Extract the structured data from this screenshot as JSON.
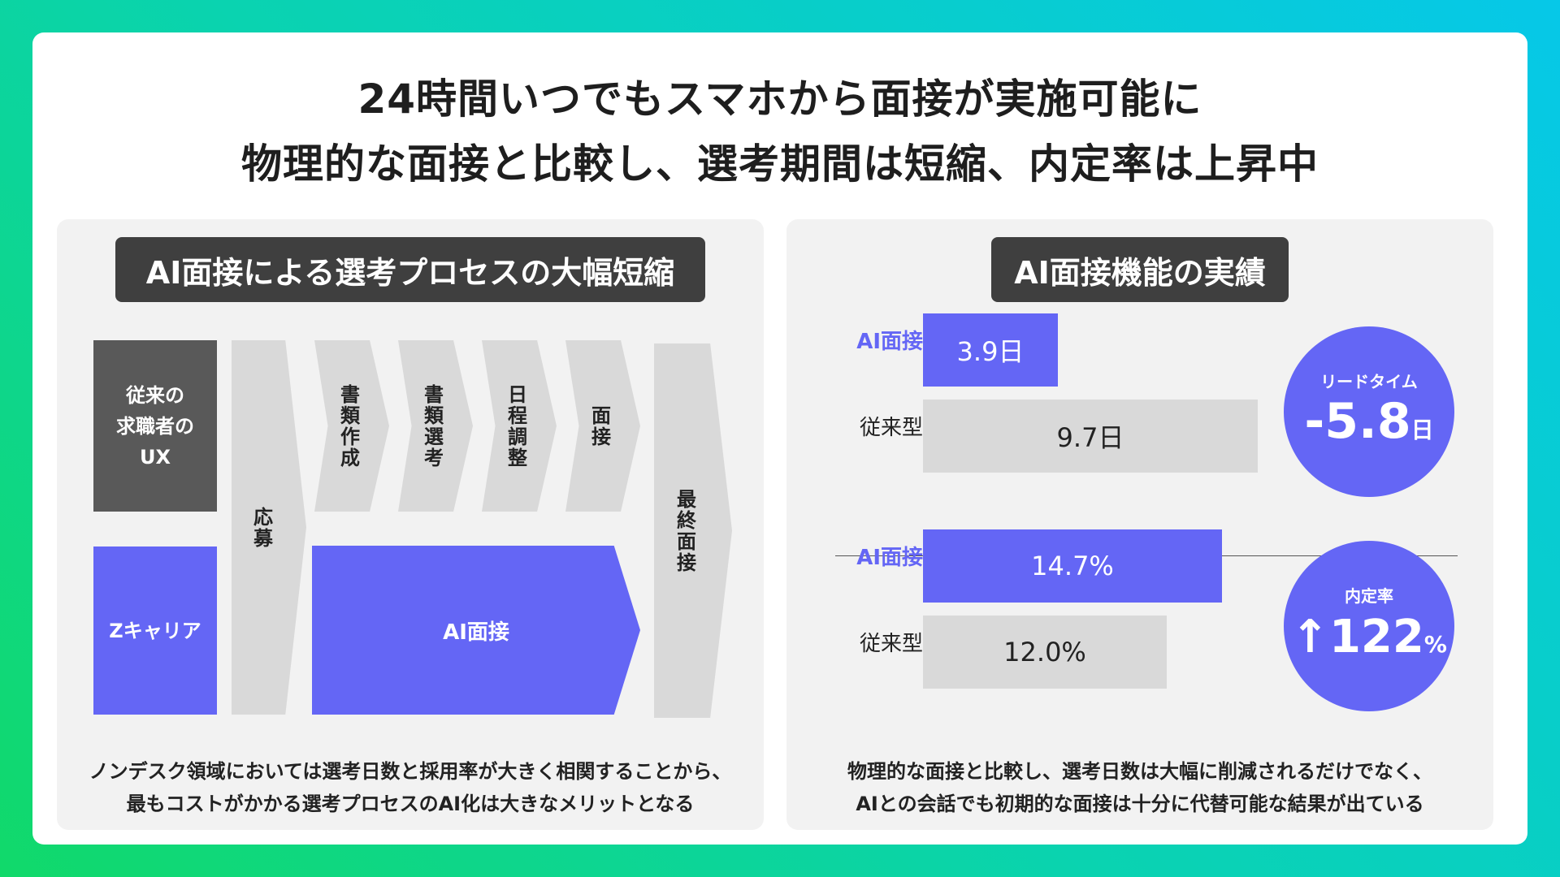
{
  "headline": {
    "line1": "24時間いつでもスマホから面接が実施可能に",
    "line2": "物理的な面接と比較し、選考期間は短縮、内定率は上昇中"
  },
  "left_panel": {
    "title": "AI面接による選考プロセスの大幅短縮",
    "traditional_ux": [
      "従来の",
      "求職者の",
      "UX"
    ],
    "zcareer_label": "Zキャリア",
    "steps": {
      "apply": "応募",
      "resume": "書類作成",
      "screening": "書類選考",
      "schedule": "日程調整",
      "interview": "面接",
      "ai_interview": "AI面接",
      "final": "最終面接"
    },
    "caption": [
      "ノンデスク領域においては選考日数と採用率が大きく相関することから、",
      "最もコストがかかる選考プロセスのAI化は大きなメリットとなる"
    ]
  },
  "right_panel": {
    "title": "AI面接機能の実績",
    "lead_time": {
      "ai_label": "AI面接",
      "ai_value": "3.9日",
      "ai_days": 3.9,
      "old_label": "従来型",
      "old_value": "9.7日",
      "old_days": 9.7,
      "badge_title": "リードタイム",
      "badge_value": "-5.8",
      "badge_unit": "日"
    },
    "offer_rate": {
      "ai_label": "AI面接",
      "ai_value": "14.7%",
      "ai_pct": 14.7,
      "old_label": "従来型",
      "old_value": "12.0%",
      "old_pct": 12.0,
      "badge_title": "内定率",
      "badge_value": "↑122",
      "badge_unit": "%"
    },
    "caption": [
      "物理的な面接と比較し、選考日数は大幅に削減されるだけでなく、",
      "AIとの会話でも初期的な面接は十分に代替可能な結果が出ている"
    ]
  },
  "colors": {
    "accent": "#6466f5",
    "dark": "#3f3f3f",
    "gray": "#595959",
    "light_gray": "#d9d9d9"
  }
}
